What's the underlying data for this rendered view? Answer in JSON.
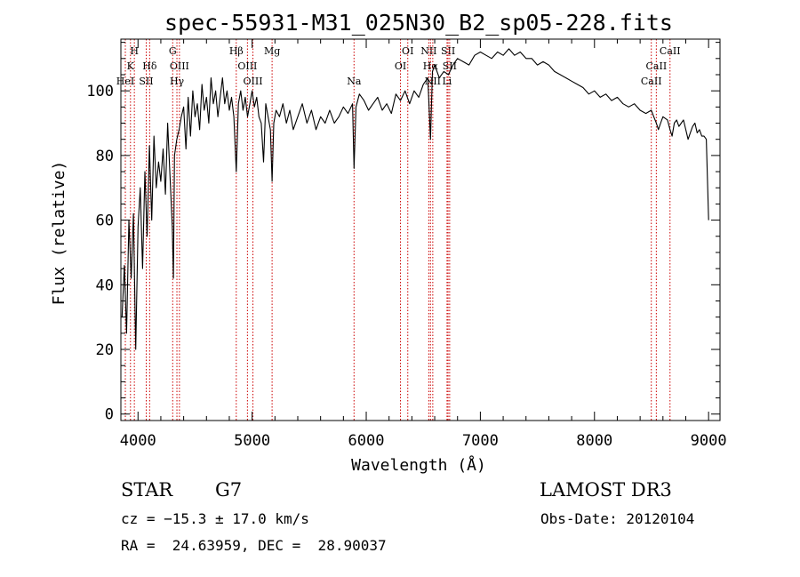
{
  "chart_data": {
    "type": "line",
    "title": "spec-55931-M31_025N30_B2_sp05-228.fits",
    "xlabel": "Wavelength (Å)",
    "ylabel": "Flux (relative)",
    "xlim": [
      3850,
      9100
    ],
    "ylim": [
      -2,
      116
    ],
    "xticks": [
      4000,
      5000,
      6000,
      7000,
      8000,
      9000
    ],
    "yticks": [
      0,
      20,
      40,
      60,
      80,
      100
    ],
    "series": [
      {
        "name": "spectrum",
        "x": [
          3860,
          3880,
          3900,
          3920,
          3940,
          3960,
          3980,
          4000,
          4020,
          4040,
          4060,
          4080,
          4100,
          4120,
          4140,
          4160,
          4180,
          4200,
          4220,
          4240,
          4260,
          4280,
          4300,
          4310,
          4320,
          4340,
          4360,
          4380,
          4400,
          4420,
          4440,
          4460,
          4480,
          4500,
          4520,
          4540,
          4560,
          4580,
          4600,
          4620,
          4640,
          4660,
          4680,
          4700,
          4720,
          4740,
          4760,
          4780,
          4800,
          4820,
          4840,
          4861,
          4880,
          4900,
          4920,
          4940,
          4960,
          4980,
          5000,
          5020,
          5040,
          5060,
          5080,
          5100,
          5120,
          5140,
          5160,
          5175,
          5190,
          5210,
          5240,
          5270,
          5300,
          5330,
          5360,
          5400,
          5440,
          5480,
          5520,
          5560,
          5600,
          5640,
          5680,
          5720,
          5760,
          5800,
          5840,
          5880,
          5893,
          5910,
          5940,
          5980,
          6020,
          6060,
          6100,
          6140,
          6180,
          6220,
          6260,
          6300,
          6340,
          6380,
          6420,
          6460,
          6500,
          6540,
          6563,
          6580,
          6600,
          6640,
          6680,
          6720,
          6760,
          6800,
          6850,
          6900,
          6950,
          7000,
          7050,
          7100,
          7150,
          7200,
          7250,
          7300,
          7350,
          7400,
          7450,
          7500,
          7550,
          7600,
          7650,
          7700,
          7750,
          7800,
          7850,
          7900,
          7950,
          8000,
          8050,
          8100,
          8150,
          8200,
          8250,
          8300,
          8350,
          8400,
          8450,
          8498,
          8520,
          8542,
          8560,
          8580,
          8600,
          8640,
          8662,
          8680,
          8700,
          8720,
          8740,
          8760,
          8780,
          8800,
          8820,
          8840,
          8860,
          8880,
          8900,
          8920,
          8940,
          8960,
          8980,
          9000
        ],
        "y": [
          30,
          46,
          25,
          60,
          42,
          62,
          20,
          58,
          70,
          45,
          75,
          55,
          83,
          60,
          86,
          70,
          78,
          72,
          82,
          68,
          90,
          74,
          58,
          42,
          80,
          85,
          88,
          92,
          95,
          82,
          98,
          86,
          100,
          92,
          96,
          88,
          102,
          94,
          98,
          90,
          104,
          96,
          100,
          92,
          98,
          104,
          96,
          100,
          94,
          98,
          92,
          75,
          96,
          100,
          94,
          98,
          92,
          96,
          100,
          95,
          98,
          92,
          90,
          78,
          96,
          92,
          88,
          72,
          90,
          94,
          92,
          96,
          90,
          94,
          88,
          92,
          96,
          90,
          94,
          88,
          92,
          90,
          94,
          90,
          92,
          95,
          93,
          96,
          76,
          95,
          99,
          97,
          94,
          96,
          98,
          94,
          96,
          93,
          99,
          97,
          100,
          96,
          100,
          98,
          102,
          104,
          85,
          106,
          108,
          104,
          106,
          105,
          108,
          110,
          109,
          108,
          111,
          112,
          111,
          110,
          112,
          111,
          113,
          111,
          112,
          110,
          110,
          108,
          109,
          108,
          106,
          105,
          104,
          103,
          102,
          101,
          99,
          100,
          98,
          99,
          97,
          98,
          96,
          95,
          96,
          94,
          93,
          94,
          92,
          90,
          88,
          90,
          92,
          91,
          88,
          86,
          90,
          91,
          89,
          90,
          91,
          88,
          85,
          87,
          89,
          90,
          87,
          88,
          86,
          86,
          85,
          60
        ]
      }
    ],
    "spectral_lines": [
      {
        "label": "H",
        "x": 3968,
        "row": 1
      },
      {
        "label": "K",
        "x": 3934,
        "row": 2
      },
      {
        "label": "HeI",
        "x": 3889,
        "row": 3
      },
      {
        "label": "Hδ",
        "x": 4102,
        "row": 2
      },
      {
        "label": "SII",
        "x": 4072,
        "row": 3
      },
      {
        "label": "G",
        "x": 4304,
        "row": 1
      },
      {
        "label": "OIII",
        "x": 4363,
        "row": 2
      },
      {
        "label": "Hγ",
        "x": 4341,
        "row": 3
      },
      {
        "label": "Hβ",
        "x": 4861,
        "row": 1
      },
      {
        "label": "OIII",
        "x": 4959,
        "row": 2
      },
      {
        "label": "OIII",
        "x": 5007,
        "row": 3
      },
      {
        "label": "Mg",
        "x": 5175,
        "row": 1
      },
      {
        "label": "Na",
        "x": 5893,
        "row": 3
      },
      {
        "label": "OI",
        "x": 6364,
        "row": 1
      },
      {
        "label": "OI",
        "x": 6300,
        "row": 2
      },
      {
        "label": "NII",
        "x": 6548,
        "row": 1
      },
      {
        "label": "SII",
        "x": 6717,
        "row": 1
      },
      {
        "label": "Hα",
        "x": 6563,
        "row": 2
      },
      {
        "label": "SII",
        "x": 6731,
        "row": 2
      },
      {
        "label": "NII",
        "x": 6583,
        "row": 3
      },
      {
        "label": "Li",
        "x": 6708,
        "row": 3
      },
      {
        "label": "CaII",
        "x": 8662,
        "row": 1
      },
      {
        "label": "CaII",
        "x": 8542,
        "row": 2
      },
      {
        "label": "CaII",
        "x": 8498,
        "row": 3
      }
    ]
  },
  "info": {
    "class": "STAR",
    "subclass": "G7",
    "survey": "LAMOST DR3",
    "cz": "cz = −15.3 ± 17.0 km/s",
    "obs_date": "Obs-Date: 20120104",
    "coords": "RA =  24.63959, DEC =  28.90037"
  },
  "colors": {
    "line_marker": "#cc0000",
    "spectrum": "#000000",
    "axes": "#000000"
  }
}
